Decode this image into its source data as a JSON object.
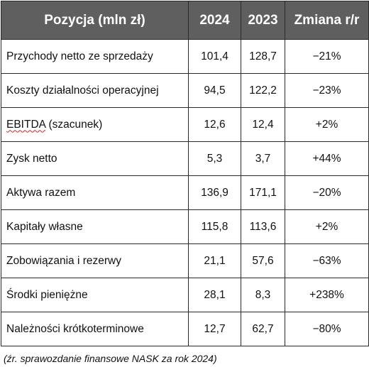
{
  "table": {
    "headers": {
      "position": "Pozycja (mln zł)",
      "y2024": "2024",
      "y2023": "2023",
      "change": "Zmiana r/r"
    },
    "rows": [
      {
        "name": "Przychody netto ze sprzedaży",
        "y2024": "101,4",
        "y2023": "128,7",
        "change": "−21%"
      },
      {
        "name": "Koszty działalności operacyjnej",
        "y2024": "94,5",
        "y2023": "122,2",
        "change": "−23%"
      },
      {
        "name_main": "EBITDA",
        "name_rest": " (szacunek)",
        "y2024": "12,6",
        "y2023": "12,4",
        "change": "+2%"
      },
      {
        "name": "Zysk netto",
        "y2024": "5,3",
        "y2023": "3,7",
        "change": "+44%"
      },
      {
        "name": "Aktywa razem",
        "y2024": "136,9",
        "y2023": "171,1",
        "change": "−20%"
      },
      {
        "name": "Kapitały własne",
        "y2024": "115,8",
        "y2023": "113,6",
        "change": "+2%"
      },
      {
        "name": "Zobowiązania i rezerwy",
        "y2024": "21,1",
        "y2023": "57,6",
        "change": "−63%"
      },
      {
        "name": "Środki pieniężne",
        "y2024": "28,1",
        "y2023": "8,3",
        "change": "+238%"
      },
      {
        "name": "Należności krótkoterminowe",
        "y2024": "12,7",
        "y2023": "62,7",
        "change": "−80%"
      }
    ]
  },
  "source_note": "(źr. sprawozdanie finansowe NASK za rok 2024)"
}
